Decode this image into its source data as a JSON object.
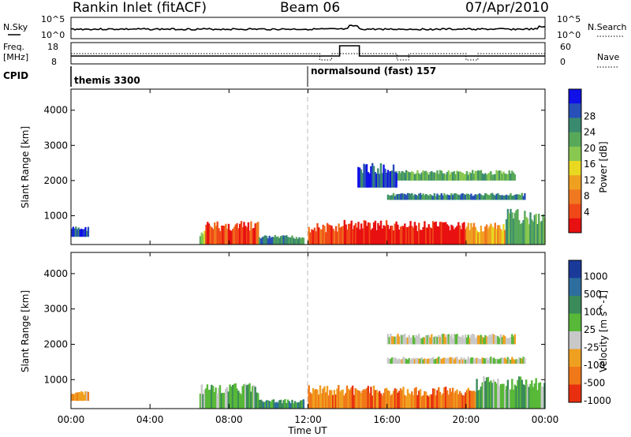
{
  "header": {
    "station": "Rankin Inlet (fitACF)",
    "beam": "Beam 06",
    "date": "07/Apr/2010"
  },
  "top_panel": {
    "left_label_top": "N.Sky",
    "left_tick_hi": "10^5",
    "left_tick_lo": "10^0",
    "right_tick_hi": "10^5",
    "right_tick_lo": "10^0",
    "right_label": "N.Search"
  },
  "freq_panel": {
    "left_label_1": "Freq.",
    "left_label_2": "[MHz]",
    "left_tick_hi": "18",
    "left_tick_lo": "8",
    "right_tick_hi": "60",
    "right_tick_lo": "0",
    "right_label": "Nave"
  },
  "cpid_panel": {
    "label": "CPID",
    "mode_1": "themis 3300",
    "mode_2": "normalsound (fast) 157"
  },
  "x_axis": {
    "label": "Time UT",
    "ticks": [
      "00:00",
      "04:00",
      "08:00",
      "12:00",
      "16:00",
      "20:00",
      "00:00"
    ]
  },
  "chart_data": [
    {
      "type": "heatmap",
      "panel": "power",
      "ylabel": "Slant Range [km]",
      "yticks": [
        "1000",
        "2000",
        "3000",
        "4000"
      ],
      "colorbar_label": "Power [dB]",
      "colorbar_ticks": [
        "4",
        "8",
        "12",
        "16",
        "20",
        "24",
        "28"
      ],
      "colors": [
        "#1010e8",
        "#2850b8",
        "#3a8a70",
        "#58a85a",
        "#88c850",
        "#e8d820",
        "#f0a020",
        "#f07820",
        "#f04818",
        "#e81010"
      ],
      "blocks": [
        {
          "t0": 0.0,
          "t1": 0.9,
          "r0": 400,
          "r1": 700,
          "c": 1
        },
        {
          "t0": 6.5,
          "t1": 7.0,
          "r0": 180,
          "r1": 600,
          "c": 4
        },
        {
          "t0": 6.8,
          "t1": 9.5,
          "r0": 180,
          "r1": 850,
          "c": 8
        },
        {
          "t0": 9.5,
          "t1": 11.8,
          "r0": 180,
          "r1": 450,
          "c": 2
        },
        {
          "t0": 12.0,
          "t1": 13.8,
          "r0": 180,
          "r1": 800,
          "c": 8
        },
        {
          "t0": 13.8,
          "t1": 16.0,
          "r0": 180,
          "r1": 900,
          "c": 9
        },
        {
          "t0": 16.0,
          "t1": 20.0,
          "r0": 180,
          "r1": 850,
          "c": 9
        },
        {
          "t0": 20.0,
          "t1": 22.0,
          "r0": 180,
          "r1": 800,
          "c": 6
        },
        {
          "t0": 22.0,
          "t1": 24.0,
          "r0": 180,
          "r1": 1200,
          "c": 3
        },
        {
          "t0": 16.0,
          "t1": 23.0,
          "r0": 1450,
          "r1": 1650,
          "c": 2
        },
        {
          "t0": 16.0,
          "t1": 22.5,
          "r0": 2000,
          "r1": 2300,
          "c": 3
        },
        {
          "t0": 14.5,
          "t1": 16.5,
          "r0": 1800,
          "r1": 2500,
          "c": 1
        }
      ]
    },
    {
      "type": "heatmap",
      "panel": "velocity",
      "ylabel": "Slant Range [km]",
      "yticks": [
        "1000",
        "2000",
        "3000",
        "4000"
      ],
      "colorbar_label": "Velocity [m s^-1]",
      "colorbar_ticks": [
        "1000",
        "500",
        "100",
        "25",
        "-25",
        "-100",
        "-500",
        "-1000"
      ],
      "colors": [
        "#1a3a9a",
        "#2e6e9e",
        "#3a8a5a",
        "#58b838",
        "#c8c8c8",
        "#f0a020",
        "#f07818",
        "#e83010"
      ],
      "blocks": [
        {
          "t0": 0.0,
          "t1": 0.9,
          "r0": 400,
          "r1": 700,
          "c": 5
        },
        {
          "t0": 6.5,
          "t1": 9.5,
          "r0": 180,
          "r1": 900,
          "c": 3
        },
        {
          "t0": 9.5,
          "t1": 11.8,
          "r0": 180,
          "r1": 450,
          "c": 2
        },
        {
          "t0": 12.0,
          "t1": 16.0,
          "r0": 180,
          "r1": 850,
          "c": 6
        },
        {
          "t0": 16.0,
          "t1": 20.5,
          "r0": 180,
          "r1": 800,
          "c": 6
        },
        {
          "t0": 20.5,
          "t1": 24.0,
          "r0": 180,
          "r1": 1100,
          "c": 3
        },
        {
          "t0": 16.0,
          "t1": 23.0,
          "r0": 1450,
          "r1": 1650,
          "c": 4
        },
        {
          "t0": 16.0,
          "t1": 22.5,
          "r0": 2000,
          "r1": 2300,
          "c": 4
        }
      ]
    }
  ]
}
